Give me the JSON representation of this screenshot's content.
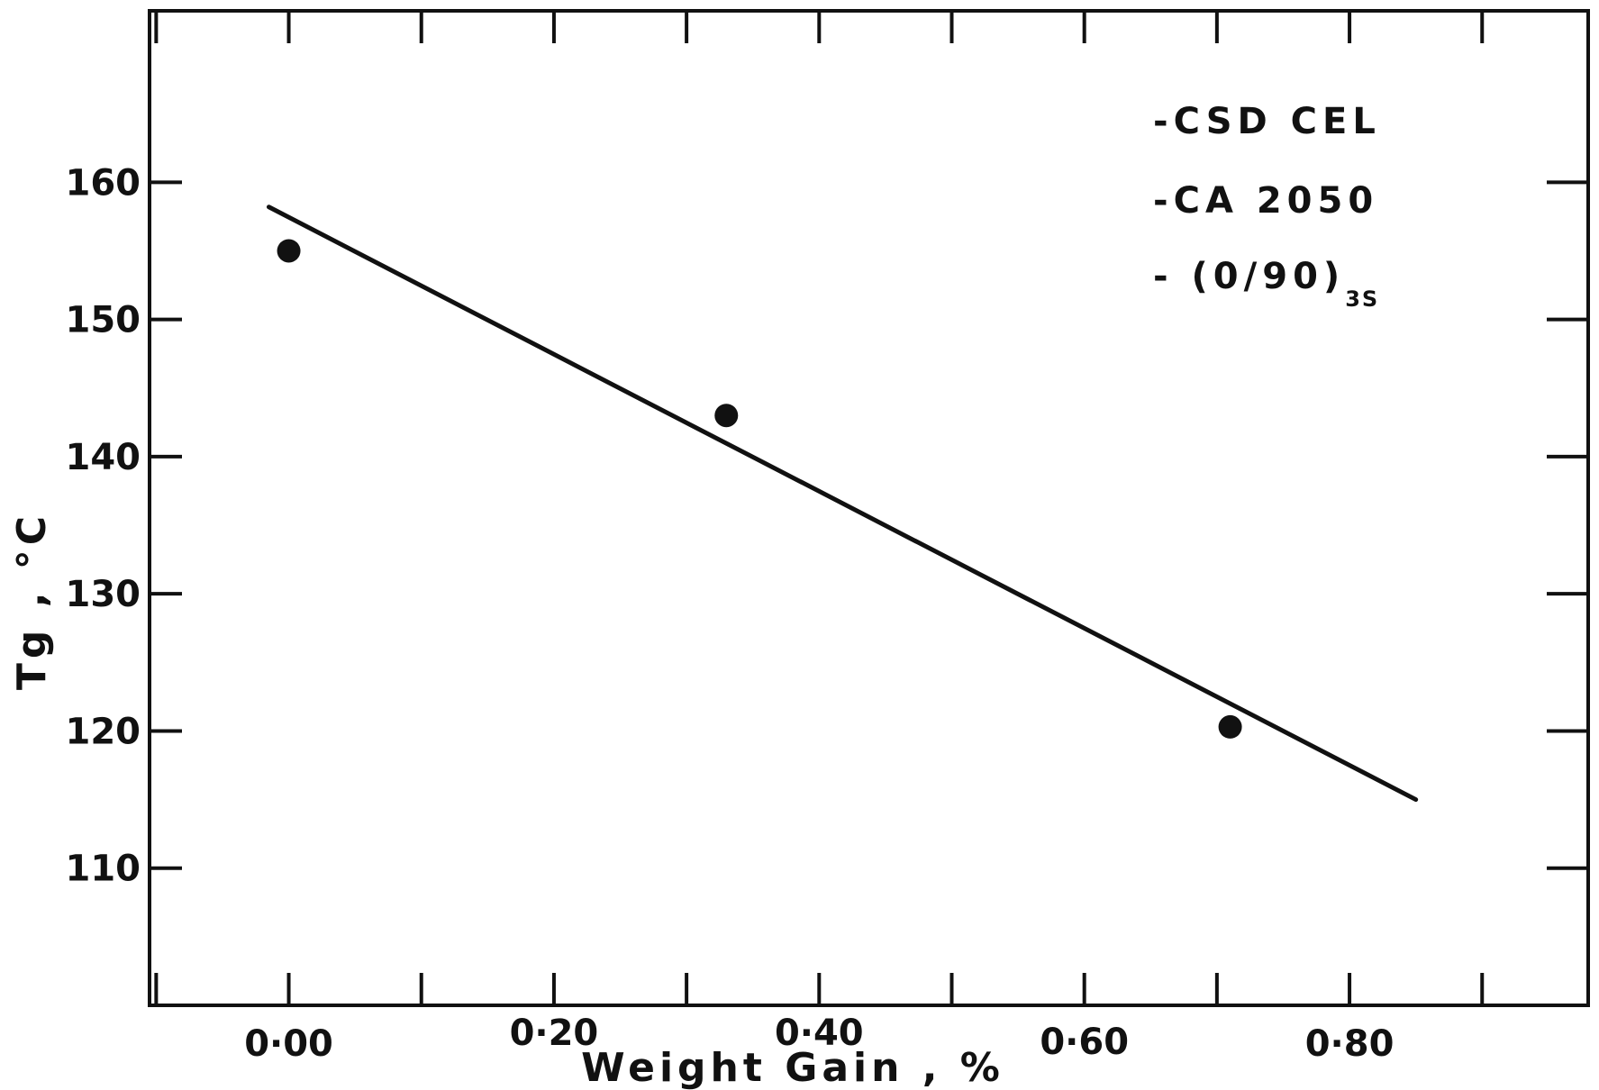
{
  "chart_data": {
    "type": "scatter",
    "title": "",
    "xlabel": "Weight Gain ,  %",
    "ylabel": "Tg ,  °C",
    "xlim": [
      -0.105,
      0.98
    ],
    "ylim": [
      100,
      172.5
    ],
    "x_ticks": [
      -0.1,
      0.0,
      0.1,
      0.2,
      0.3,
      0.4,
      0.5,
      0.6,
      0.7,
      0.8,
      0.9
    ],
    "x_tick_labels": [
      {
        "value": 0.0,
        "label": "0·00"
      },
      {
        "value": 0.2,
        "label": "0·20"
      },
      {
        "value": 0.4,
        "label": "0·40"
      },
      {
        "value": 0.6,
        "label": "0·60"
      },
      {
        "value": 0.8,
        "label": "0·80"
      }
    ],
    "y_ticks": [
      110,
      120,
      130,
      140,
      150,
      160
    ],
    "y_tick_labels": [
      "110",
      "120",
      "130",
      "140",
      "150",
      "160"
    ],
    "grid": false,
    "legend": {
      "placement": "top-right",
      "entries": [
        "-CSD CEL",
        "-CA 2050",
        "- (0/90)"
      ],
      "subscript": "3S"
    },
    "series": [
      {
        "kind": "points",
        "marker": "filled-circle",
        "x": [
          0.0,
          0.33,
          0.71
        ],
        "y": [
          155,
          143,
          120.3
        ]
      },
      {
        "kind": "fit-line",
        "x": [
          -0.015,
          0.85
        ],
        "y": [
          158.2,
          115.0
        ]
      }
    ],
    "colors": {
      "ink": "#111111",
      "background": "#ffffff"
    }
  }
}
